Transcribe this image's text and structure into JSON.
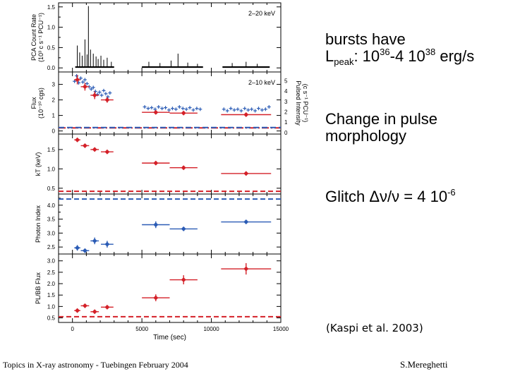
{
  "notes": {
    "bursts": {
      "line1": "bursts have",
      "lpeak_L": "L",
      "lpeak_sub": "peak",
      "lpeak_colon": ": 10",
      "exp1": "36",
      "mid": "-4 10",
      "exp2": "38",
      "unit": " erg/s"
    },
    "pulse": {
      "line1": "Change in pulse",
      "line2": "morphology"
    },
    "glitch": {
      "label": "Glitch  ",
      "delta": "Δν/ν",
      "eq": " = 4 10",
      "exp": "-6"
    }
  },
  "citation": "(Kaspi et al. 2003)",
  "footer": {
    "left": "Topics in X-ray astronomy  -  Tuebingen  February 2004",
    "right": "S.Mereghetti"
  },
  "colors": {
    "red": "#d42028",
    "blue": "#2a5bb5",
    "black": "#000000"
  },
  "chart_data": {
    "type": "scatter",
    "xlabel": "Time (sec)",
    "xlim": [
      -1000,
      15000
    ],
    "xticks": [
      0,
      5000,
      10000,
      15000
    ],
    "panels": [
      {
        "id": "rate",
        "ylabel": "PCA Count Rate",
        "ylabel_unit": "(10³ c s⁻¹ PCU⁻¹)",
        "ylim": [
          -0.1,
          1.6
        ],
        "yticks": [
          "0.0",
          "0.5",
          "1.0",
          "1.5"
        ],
        "ytick_values": [
          0,
          0.5,
          1.0,
          1.5
        ],
        "yticks_minor": [
          0.25,
          0.75,
          1.25
        ],
        "annotation": "2–20 keV",
        "segments": [
          [
            200,
            3000
          ],
          [
            5000,
            9400
          ],
          [
            10800,
            14200
          ]
        ],
        "baseline": 0.02,
        "spikes": [
          {
            "x": 350,
            "y": 0.55
          },
          {
            "x": 520,
            "y": 0.38
          },
          {
            "x": 700,
            "y": 0.3
          },
          {
            "x": 900,
            "y": 0.7
          },
          {
            "x": 1050,
            "y": 0.33
          },
          {
            "x": 1150,
            "y": 1.52
          },
          {
            "x": 1300,
            "y": 0.45
          },
          {
            "x": 1500,
            "y": 0.35
          },
          {
            "x": 1700,
            "y": 0.28
          },
          {
            "x": 1850,
            "y": 0.22
          },
          {
            "x": 2050,
            "y": 0.3
          },
          {
            "x": 2250,
            "y": 0.2
          },
          {
            "x": 2500,
            "y": 0.25
          },
          {
            "x": 2800,
            "y": 0.15
          },
          {
            "x": 5500,
            "y": 0.15
          },
          {
            "x": 6300,
            "y": 0.12
          },
          {
            "x": 7100,
            "y": 0.18
          },
          {
            "x": 7600,
            "y": 0.35
          },
          {
            "x": 8300,
            "y": 0.13
          },
          {
            "x": 9000,
            "y": 0.1
          },
          {
            "x": 11500,
            "y": 0.12
          },
          {
            "x": 12500,
            "y": 0.15
          },
          {
            "x": 13300,
            "y": 0.1
          }
        ]
      },
      {
        "id": "flux",
        "ylabel": "Flux",
        "ylabel_unit": "(10⁻¹⁰ cgs)",
        "ylim": [
          -0.2,
          3.8
        ],
        "yticks": [
          "0",
          "1",
          "2",
          "3"
        ],
        "ytick_values": [
          0,
          1,
          2,
          3
        ],
        "right_ylabel": "Pulsed Intensity",
        "right_ylabel_unit": "(c s⁻¹ PCU⁻¹)",
        "right_ylim": [
          -0.15,
          5.85
        ],
        "right_yticks": [
          "0",
          "1",
          "2",
          "3",
          "4",
          "5"
        ],
        "right_ytick_values": [
          0,
          1,
          2,
          3,
          4,
          5
        ],
        "annotation": "2–10 keV",
        "red_flux": [
          {
            "x": 350,
            "y": 3.3,
            "xerr": 220,
            "yerr": 0.3
          },
          {
            "x": 900,
            "y": 2.85,
            "xerr": 300,
            "yerr": 0.25
          },
          {
            "x": 1600,
            "y": 2.3,
            "xerr": 300,
            "yerr": 0.25
          },
          {
            "x": 2500,
            "y": 2.0,
            "xerr": 450,
            "yerr": 0.18
          },
          {
            "x": 6000,
            "y": 1.2,
            "xerr": 1000,
            "yerr": 0.1
          },
          {
            "x": 8000,
            "y": 1.15,
            "xerr": 1000,
            "yerr": 0.1
          },
          {
            "x": 12500,
            "y": 1.05,
            "xerr": 1800,
            "yerr": 0.1
          }
        ],
        "blue_pulsed": [
          [
            150,
            3.2
          ],
          [
            300,
            3.55
          ],
          [
            450,
            3.1
          ],
          [
            600,
            3.4
          ],
          [
            750,
            3.15
          ],
          [
            900,
            3.3
          ],
          [
            1050,
            3.05
          ],
          [
            1200,
            2.85
          ],
          [
            1350,
            2.7
          ],
          [
            1500,
            2.8
          ],
          [
            1650,
            2.55
          ],
          [
            1800,
            2.35
          ],
          [
            1950,
            2.5
          ],
          [
            2100,
            2.3
          ],
          [
            2250,
            2.6
          ],
          [
            2400,
            2.4
          ],
          [
            2550,
            2.2
          ],
          [
            2700,
            2.45
          ],
          [
            5200,
            1.55
          ],
          [
            5450,
            1.45
          ],
          [
            5700,
            1.5
          ],
          [
            5950,
            1.4
          ],
          [
            6200,
            1.55
          ],
          [
            6450,
            1.45
          ],
          [
            6700,
            1.5
          ],
          [
            6950,
            1.35
          ],
          [
            7200,
            1.45
          ],
          [
            7450,
            1.4
          ],
          [
            7700,
            1.55
          ],
          [
            7950,
            1.45
          ],
          [
            8200,
            1.4
          ],
          [
            8450,
            1.5
          ],
          [
            8700,
            1.35
          ],
          [
            8950,
            1.45
          ],
          [
            9200,
            1.4
          ],
          [
            10900,
            1.4
          ],
          [
            11150,
            1.3
          ],
          [
            11400,
            1.45
          ],
          [
            11650,
            1.35
          ],
          [
            11900,
            1.4
          ],
          [
            12150,
            1.3
          ],
          [
            12400,
            1.45
          ],
          [
            12650,
            1.35
          ],
          [
            12900,
            1.4
          ],
          [
            13150,
            1.3
          ],
          [
            13400,
            1.45
          ],
          [
            13650,
            1.35
          ],
          [
            13900,
            1.4
          ],
          [
            14150,
            1.55
          ]
        ],
        "red_dashline": 0.2,
        "blue_dashline": 0.22
      },
      {
        "id": "kt",
        "ylabel": "kT (keV)",
        "ylim": [
          0.35,
          1.9
        ],
        "yticks": [
          "0.5",
          "1.0",
          "1.5"
        ],
        "ytick_values": [
          0.5,
          1.0,
          1.5
        ],
        "red": [
          {
            "x": 350,
            "y": 1.75,
            "xerr": 220,
            "yerr": 0.03
          },
          {
            "x": 900,
            "y": 1.6,
            "xerr": 300,
            "yerr": 0.03
          },
          {
            "x": 1600,
            "y": 1.5,
            "xerr": 300,
            "yerr": 0.03
          },
          {
            "x": 2500,
            "y": 1.44,
            "xerr": 450,
            "yerr": 0.03
          },
          {
            "x": 6000,
            "y": 1.15,
            "xerr": 1000,
            "yerr": 0.03
          },
          {
            "x": 8000,
            "y": 1.03,
            "xerr": 1000,
            "yerr": 0.03
          },
          {
            "x": 12500,
            "y": 0.88,
            "xerr": 1800,
            "yerr": 0.03
          }
        ],
        "dashline": 0.42
      },
      {
        "id": "index",
        "ylabel": "Photon Index",
        "ylim": [
          2.25,
          4.4
        ],
        "yticks": [
          "2.5",
          "3.0",
          "3.5",
          "4.0"
        ],
        "ytick_values": [
          2.5,
          3.0,
          3.5,
          4.0
        ],
        "yticks_minor": [
          2.75,
          3.25,
          3.75,
          4.25
        ],
        "blue": [
          {
            "x": 350,
            "y": 2.47,
            "xerr": 220,
            "yerr": 0.1
          },
          {
            "x": 900,
            "y": 2.37,
            "xerr": 300,
            "yerr": 0.07
          },
          {
            "x": 1600,
            "y": 2.72,
            "xerr": 300,
            "yerr": 0.12
          },
          {
            "x": 2500,
            "y": 2.6,
            "xerr": 450,
            "yerr": 0.12
          },
          {
            "x": 6000,
            "y": 3.3,
            "xerr": 1000,
            "yerr": 0.12
          },
          {
            "x": 8000,
            "y": 3.15,
            "xerr": 1000,
            "yerr": 0.07
          },
          {
            "x": 12500,
            "y": 3.4,
            "xerr": 1800,
            "yerr": 0.07
          }
        ],
        "dashline": 4.22
      },
      {
        "id": "plbb",
        "ylabel": "PL/BB Flux",
        "ylim": [
          0.3,
          3.3
        ],
        "yticks": [
          "0.5",
          "1.0",
          "1.5",
          "2.0",
          "2.5",
          "3.0"
        ],
        "ytick_values": [
          0.5,
          1.0,
          1.5,
          2.0,
          2.5,
          3.0
        ],
        "red": [
          {
            "x": 350,
            "y": 0.82,
            "xerr": 220,
            "yerr": 0.08
          },
          {
            "x": 900,
            "y": 1.03,
            "xerr": 300,
            "yerr": 0.08
          },
          {
            "x": 1600,
            "y": 0.77,
            "xerr": 300,
            "yerr": 0.06
          },
          {
            "x": 2500,
            "y": 0.97,
            "xerr": 450,
            "yerr": 0.06
          },
          {
            "x": 6000,
            "y": 1.38,
            "xerr": 1000,
            "yerr": 0.15
          },
          {
            "x": 8000,
            "y": 2.17,
            "xerr": 1000,
            "yerr": 0.2
          },
          {
            "x": 12500,
            "y": 2.65,
            "xerr": 1800,
            "yerr": 0.25
          }
        ],
        "dashline": 0.55
      }
    ]
  }
}
